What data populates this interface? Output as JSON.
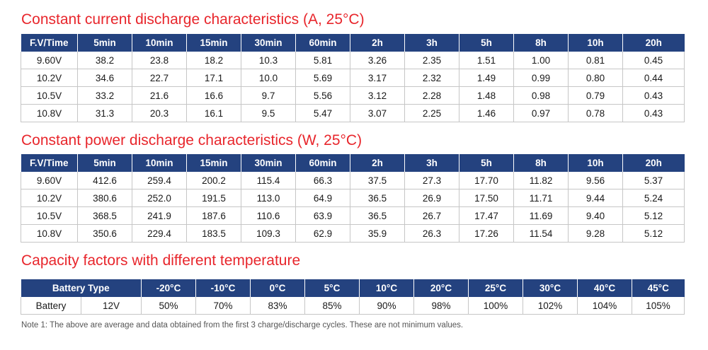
{
  "cc": {
    "title": "Constant current discharge characteristics (A, 25°C)",
    "headers": [
      "F.V/Time",
      "5min",
      "10min",
      "15min",
      "30min",
      "60min",
      "2h",
      "3h",
      "5h",
      "8h",
      "10h",
      "20h"
    ],
    "rows": [
      [
        "9.60V",
        "38.2",
        "23.8",
        "18.2",
        "10.3",
        "5.81",
        "3.26",
        "2.35",
        "1.51",
        "1.00",
        "0.81",
        "0.45"
      ],
      [
        "10.2V",
        "34.6",
        "22.7",
        "17.1",
        "10.0",
        "5.69",
        "3.17",
        "2.32",
        "1.49",
        "0.99",
        "0.80",
        "0.44"
      ],
      [
        "10.5V",
        "33.2",
        "21.6",
        "16.6",
        "9.7",
        "5.56",
        "3.12",
        "2.28",
        "1.48",
        "0.98",
        "0.79",
        "0.43"
      ],
      [
        "10.8V",
        "31.3",
        "20.3",
        "16.1",
        "9.5",
        "5.47",
        "3.07",
        "2.25",
        "1.46",
        "0.97",
        "0.78",
        "0.43"
      ]
    ]
  },
  "cp": {
    "title": "Constant power discharge characteristics (W, 25°C)",
    "headers": [
      "F.V/Time",
      "5min",
      "10min",
      "15min",
      "30min",
      "60min",
      "2h",
      "3h",
      "5h",
      "8h",
      "10h",
      "20h"
    ],
    "rows": [
      [
        "9.60V",
        "412.6",
        "259.4",
        "200.2",
        "115.4",
        "66.3",
        "37.5",
        "27.3",
        "17.70",
        "11.82",
        "9.56",
        "5.37"
      ],
      [
        "10.2V",
        "380.6",
        "252.0",
        "191.5",
        "113.0",
        "64.9",
        "36.5",
        "26.9",
        "17.50",
        "11.71",
        "9.44",
        "5.24"
      ],
      [
        "10.5V",
        "368.5",
        "241.9",
        "187.6",
        "110.6",
        "63.9",
        "36.5",
        "26.7",
        "17.47",
        "11.69",
        "9.40",
        "5.12"
      ],
      [
        "10.8V",
        "350.6",
        "229.4",
        "183.5",
        "109.3",
        "62.9",
        "35.9",
        "26.3",
        "17.26",
        "11.54",
        "9.28",
        "5.12"
      ]
    ]
  },
  "cap": {
    "title": "Capacity factors with different temperature",
    "header_first": "Battery Type",
    "headers": [
      "-20°C",
      "-10°C",
      "0°C",
      "5°C",
      "10°C",
      "20°C",
      "25°C",
      "30°C",
      "40°C",
      "45°C"
    ],
    "row": [
      "Battery",
      "12V",
      "50%",
      "70%",
      "83%",
      "85%",
      "90%",
      "98%",
      "100%",
      "102%",
      "104%",
      "105%"
    ]
  },
  "note": "Note 1: The above are average and data obtained from the first 3 charge/discharge cycles. These are not minimum values."
}
